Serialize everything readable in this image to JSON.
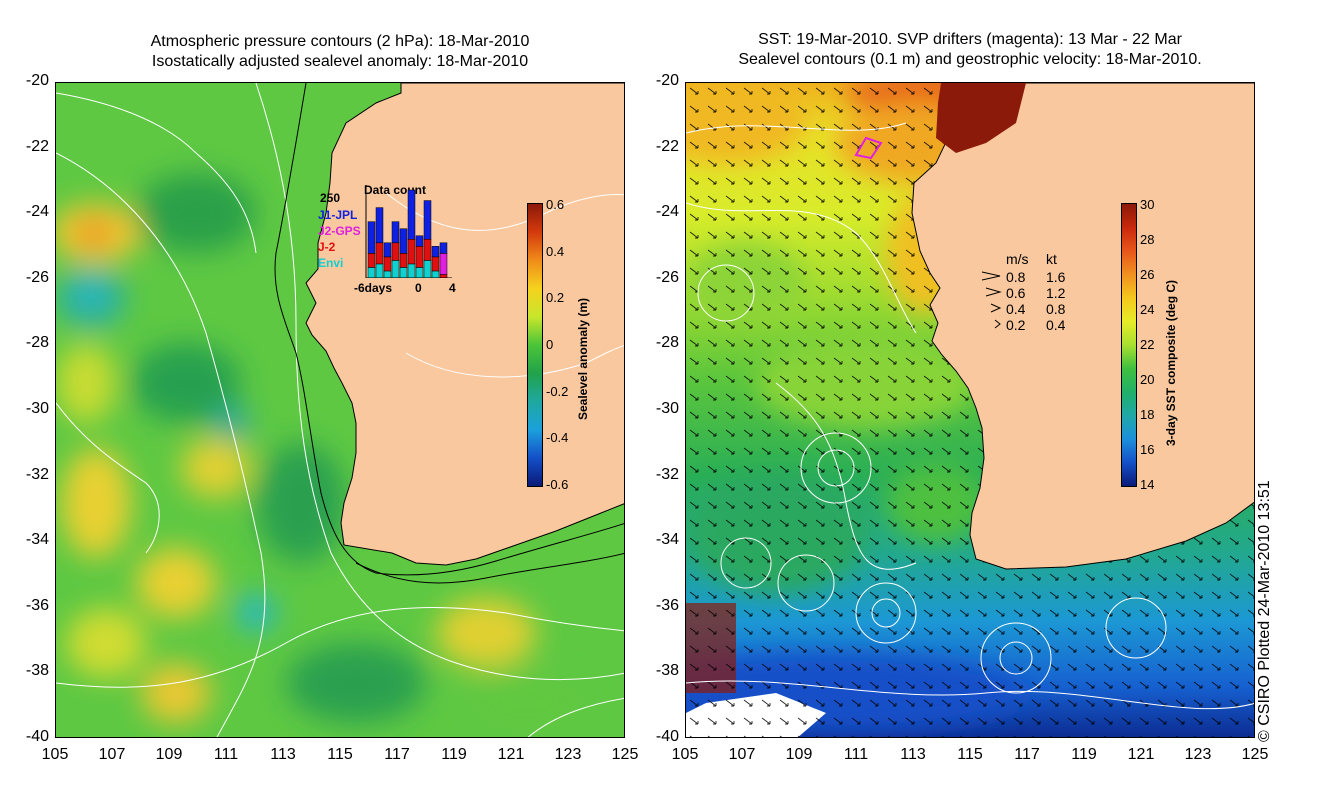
{
  "left_panel": {
    "title_line1": "Atmospheric pressure contours (2 hPa): 18-Mar-2010",
    "title_line2": "Isostatically adjusted sealevel anomaly: 18-Mar-2010",
    "colorbar": {
      "label": "Sealevel anomaly (m)",
      "ticks": [
        "0.6",
        "0.4",
        "0.2",
        "0",
        "-0.2",
        "-0.4",
        "-0.6"
      ],
      "colors": [
        "#8b1a0a",
        "#d43a0c",
        "#f08c1a",
        "#f5d21e",
        "#c8e62c",
        "#4cc438",
        "#22a24a",
        "#1fa8a0",
        "#1ca0dc",
        "#1450c8",
        "#0a1a78"
      ]
    },
    "histogram": {
      "title": "Data count",
      "ymax_label": "250",
      "legend": [
        {
          "name": "J1-JPL",
          "color": "#1020e0"
        },
        {
          "name": "J2-GPS",
          "color": "#e020e0"
        },
        {
          "name": "J-2",
          "color": "#e01010"
        },
        {
          "name": "Envi",
          "color": "#10d0d0"
        }
      ],
      "xlabels": [
        "-6days",
        "0",
        "4"
      ],
      "bars": [
        {
          "Envi": 30,
          "J-2": 40,
          "J2-GPS": 0,
          "J1-JPL": 90
        },
        {
          "Envi": 40,
          "J-2": 60,
          "J2-GPS": 0,
          "J1-JPL": 100
        },
        {
          "Envi": 20,
          "J-2": 40,
          "J2-GPS": 0,
          "J1-JPL": 40
        },
        {
          "Envi": 50,
          "J-2": 50,
          "J2-GPS": 0,
          "J1-JPL": 60
        },
        {
          "Envi": 30,
          "J-2": 40,
          "J2-GPS": 0,
          "J1-JPL": 70
        },
        {
          "Envi": 40,
          "J-2": 70,
          "J2-GPS": 0,
          "J1-JPL": 140
        },
        {
          "Envi": 30,
          "J-2": 60,
          "J2-GPS": 0,
          "J1-JPL": 30
        },
        {
          "Envi": 50,
          "J-2": 60,
          "J2-GPS": 0,
          "J1-JPL": 110
        },
        {
          "Envi": 20,
          "J-2": 40,
          "J2-GPS": 0,
          "J1-JPL": 30
        },
        {
          "Envi": 0,
          "J-2": 10,
          "J2-GPS": 60,
          "J1-JPL": 30
        }
      ]
    }
  },
  "right_panel": {
    "title_line1": "SST: 19-Mar-2010. SVP drifters (magenta): 13 Mar - 22 Mar",
    "title_line2": "Sealevel contours (0.1 m) and geostrophic velocity: 18-Mar-2010.",
    "colorbar": {
      "label": "3-day SST composite (deg C)",
      "ticks": [
        "30",
        "28",
        "26",
        "24",
        "22",
        "20",
        "18",
        "16",
        "14"
      ],
      "colors": [
        "#8b1a0a",
        "#c8280c",
        "#e8561a",
        "#f09020",
        "#f5c81e",
        "#e6ec28",
        "#a8e030",
        "#40c040",
        "#20b068",
        "#20a8a8",
        "#1c90dc",
        "#1450c8",
        "#0a1a78"
      ]
    },
    "speed_legend": {
      "header_ms": "m/s",
      "header_kt": "kt",
      "rows": [
        {
          "ms": "0.8",
          "kt": "1.6",
          "scale": 1.0
        },
        {
          "ms": "0.6",
          "kt": "1.2",
          "scale": 0.75
        },
        {
          "ms": "0.4",
          "kt": "0.8",
          "scale": 0.5
        },
        {
          "ms": "0.2",
          "kt": "0.4",
          "scale": 0.25
        }
      ]
    }
  },
  "axes": {
    "x_ticks": [
      "105",
      "107",
      "109",
      "111",
      "113",
      "115",
      "117",
      "119",
      "121",
      "123",
      "125"
    ],
    "y_ticks": [
      "-20",
      "-22",
      "-24",
      "-26",
      "-28",
      "-30",
      "-32",
      "-34",
      "-36",
      "-38",
      "-40"
    ]
  },
  "colors": {
    "land": "#f9c89e",
    "sla_base": "#5ec843",
    "coast": "#000000",
    "contour": "#ffffff"
  },
  "copyright": "© CSIRO Plotted 24-Mar-2010 13:51"
}
